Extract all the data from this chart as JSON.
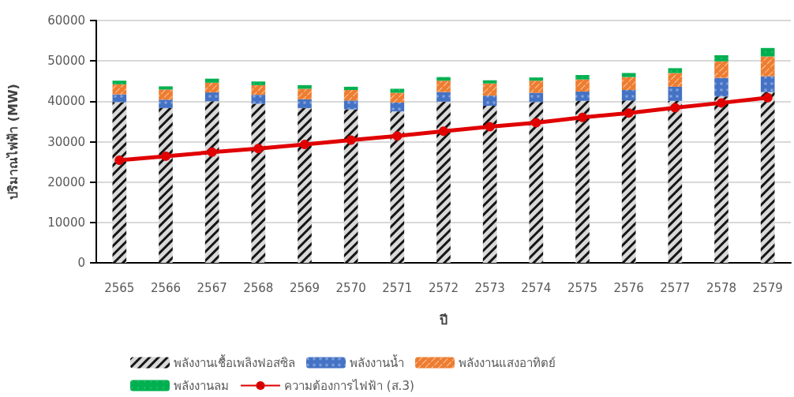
{
  "chart_data": {
    "type": "bar",
    "stacked": true,
    "xlabel": "ปี",
    "ylabel": "ปริมาณไฟฟ้า (MW)",
    "categories": [
      "2565",
      "2566",
      "2567",
      "2568",
      "2569",
      "2570",
      "2571",
      "2572",
      "2573",
      "2574",
      "2575",
      "2576",
      "2577",
      "2578",
      "2579"
    ],
    "series": [
      {
        "name": "พลังงานเชื้อเพลิงฟอสซิล",
        "color": "#d9d9d9",
        "values": [
          39800,
          38300,
          40000,
          39400,
          38300,
          38000,
          37500,
          39900,
          38900,
          39800,
          40100,
          40200,
          40100,
          41200,
          42300
        ]
      },
      {
        "name": "พลังงานน้ำ",
        "color": "#4472c4",
        "values": [
          1900,
          2100,
          2200,
          2200,
          2200,
          2200,
          2200,
          2400,
          2500,
          2300,
          2300,
          2600,
          3500,
          4600,
          3900
        ]
      },
      {
        "name": "พลังงานแสงอาทิตย์",
        "color": "#ed7d31",
        "values": [
          2500,
          2500,
          2400,
          2400,
          2600,
          2600,
          2400,
          2800,
          3000,
          3000,
          3000,
          3200,
          3400,
          4100,
          4900
        ]
      },
      {
        "name": "พลังงานลม",
        "color": "#00b050",
        "values": [
          900,
          800,
          1000,
          900,
          900,
          800,
          1000,
          900,
          800,
          800,
          1100,
          1000,
          1200,
          1500,
          2100
        ]
      },
      {
        "name": "ความต้องการไฟฟ้า (ส.3)",
        "type": "line",
        "color": "#e00000",
        "marker": "circle",
        "values": [
          25400,
          26400,
          27400,
          28300,
          29300,
          30400,
          31400,
          32600,
          33700,
          34700,
          36000,
          37100,
          38400,
          39600,
          40900
        ]
      }
    ],
    "ylim": [
      0,
      60000
    ],
    "yticks": [
      0,
      10000,
      20000,
      30000,
      40000,
      50000,
      60000
    ],
    "grid": "y",
    "legend": "bottom"
  }
}
